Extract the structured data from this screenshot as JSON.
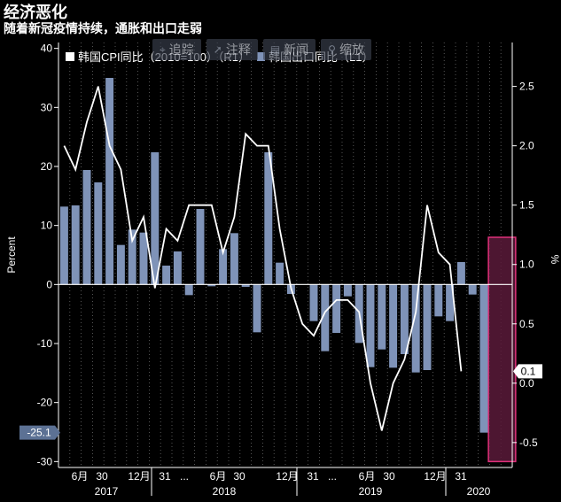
{
  "header": {
    "title": "经济恶化",
    "subtitle": "随着新冠疫情持续，通胀和出口走弱"
  },
  "toolbar": {
    "items": [
      {
        "icon": "crosshair-icon",
        "label": "追踪"
      },
      {
        "icon": "cursor-icon",
        "label": "注释"
      },
      {
        "icon": "news-icon",
        "label": "新闻"
      },
      {
        "icon": "zoom-icon",
        "label": "缩放"
      }
    ]
  },
  "legend": {
    "cpi_label": "韩国CPI同比（2010=100）（R1）",
    "exports_label": "韩国出口同比（L1）"
  },
  "colors": {
    "background": "#000000",
    "cpi_line": "#ffffff",
    "export_bars": "#7f93b8",
    "highlight_fill": "#5a1a3a",
    "highlight_border": "#e0307a"
  },
  "chart_data": {
    "type": "bar",
    "left_axis": {
      "label": "Percent",
      "ylim": [
        -31,
        41
      ],
      "ticks": [
        -30,
        -20,
        -10,
        0,
        10,
        20,
        30,
        40
      ]
    },
    "right_axis": {
      "label": "%",
      "ylim": [
        -0.71,
        2.87
      ],
      "ticks": [
        -0.5,
        0.0,
        0.5,
        1.0,
        1.5,
        2.0,
        2.5
      ]
    },
    "x_tick_labels": [
      "6月",
      "30",
      "12月",
      "31",
      "...",
      "6月",
      "30",
      "12月",
      "31",
      "...",
      "6月",
      "30",
      "12月",
      "31",
      "2020"
    ],
    "x_year_labels": [
      "2017",
      "2018",
      "2019",
      "2020"
    ],
    "months": [
      "2017-01",
      "2017-02",
      "2017-03",
      "2017-04",
      "2017-05",
      "2017-06",
      "2017-07",
      "2017-08",
      "2017-09",
      "2017-10",
      "2017-11",
      "2017-12",
      "2018-01",
      "2018-02",
      "2018-03",
      "2018-04",
      "2018-05",
      "2018-06",
      "2018-07",
      "2018-08",
      "2018-09",
      "2018-10",
      "2018-11",
      "2018-12",
      "2019-01",
      "2019-02",
      "2019-03",
      "2019-04",
      "2019-05",
      "2019-06",
      "2019-07",
      "2019-08",
      "2019-09",
      "2019-10",
      "2019-11",
      "2019-12",
      "2020-01",
      "2020-02",
      "2020-03",
      "2020-04"
    ],
    "series": [
      {
        "name": "韩国出口同比（L1）",
        "kind": "bar",
        "axis": "left",
        "values": [
          13.2,
          13.4,
          19.4,
          17.3,
          35.0,
          6.7,
          9.3,
          8.8,
          22.4,
          3.2,
          5.6,
          -1.8,
          12.8,
          -0.3,
          6.0,
          8.7,
          -0.4,
          -8.1,
          22.4,
          3.7,
          -1.6,
          0.0,
          -6.2,
          -11.3,
          -8.2,
          -2.0,
          -9.9,
          -14.0,
          -11.0,
          -14.1,
          -11.8,
          -14.9,
          -14.5,
          -5.4,
          -6.2,
          3.8,
          -1.7,
          -25.1,
          0,
          0
        ]
      },
      {
        "name": "韩国CPI同比（2010=100）（R1）",
        "kind": "line",
        "axis": "right",
        "values": [
          2.0,
          1.8,
          2.2,
          2.5,
          2.0,
          1.8,
          1.2,
          1.4,
          0.8,
          1.3,
          1.2,
          1.5,
          1.5,
          1.5,
          1.1,
          1.4,
          2.1,
          2.0,
          2.0,
          1.3,
          0.8,
          0.5,
          0.4,
          0.6,
          0.7,
          0.7,
          0.6,
          0.0,
          -0.4,
          0.0,
          0.2,
          0.6,
          1.5,
          1.1,
          1.0,
          0.1
        ]
      }
    ],
    "annotations": {
      "last_export": -25.1,
      "last_cpi": 0.1
    }
  }
}
